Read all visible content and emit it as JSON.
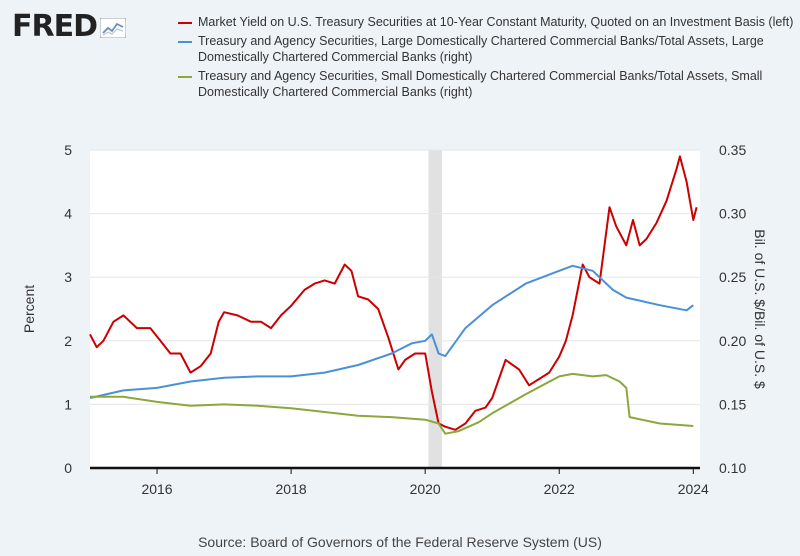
{
  "logo": {
    "text": "FRED",
    "badge_icon": "line-chart-icon"
  },
  "source": "Source: Board of Governors of the Federal Reserve System (US)",
  "colors": {
    "background": "#eef3f8",
    "plot_bg": "#ffffff",
    "recession": "#e1e1e1",
    "red": "#cc0000",
    "blue": "#4a90d9",
    "green": "#8aa83c"
  },
  "chart_data": {
    "type": "line",
    "x_range": [
      2015.0,
      2024.1
    ],
    "x_ticks": [
      2016,
      2018,
      2020,
      2022,
      2024
    ],
    "x_tick_labels": [
      "2016",
      "2018",
      "2020",
      "2022",
      "2024"
    ],
    "ylabel_left": "Percent",
    "ylabel_right": "Bil. of U.S. $/Bil. of U.S. $",
    "ylim_left": [
      0,
      5
    ],
    "ylim_right": [
      0.1,
      0.35
    ],
    "left_ticks": [
      0,
      1,
      2,
      3,
      4,
      5
    ],
    "left_tick_labels": [
      "0",
      "1",
      "2",
      "3",
      "4",
      "5"
    ],
    "right_ticks": [
      0.1,
      0.15,
      0.2,
      0.25,
      0.3,
      0.35
    ],
    "right_tick_labels": [
      "0.10",
      "0.15",
      "0.20",
      "0.25",
      "0.30",
      "0.35"
    ],
    "recession": [
      2020.05,
      2020.25
    ],
    "series": [
      {
        "name": "Market Yield on U.S. Treasury Securities at 10-Year Constant Maturity, Quoted on an Investment Basis (left)",
        "axis": "left",
        "color": "#cc0000",
        "x": [
          2015.0,
          2015.1,
          2015.2,
          2015.35,
          2015.5,
          2015.7,
          2015.9,
          2016.05,
          2016.2,
          2016.35,
          2016.5,
          2016.65,
          2016.8,
          2016.92,
          2017.0,
          2017.2,
          2017.4,
          2017.55,
          2017.7,
          2017.85,
          2018.0,
          2018.2,
          2018.35,
          2018.5,
          2018.65,
          2018.8,
          2018.9,
          2019.0,
          2019.15,
          2019.3,
          2019.45,
          2019.6,
          2019.7,
          2019.85,
          2020.0,
          2020.1,
          2020.2,
          2020.3,
          2020.45,
          2020.6,
          2020.75,
          2020.9,
          2021.0,
          2021.1,
          2021.2,
          2021.4,
          2021.55,
          2021.7,
          2021.85,
          2022.0,
          2022.1,
          2022.2,
          2022.35,
          2022.45,
          2022.6,
          2022.75,
          2022.85,
          2023.0,
          2023.1,
          2023.2,
          2023.3,
          2023.45,
          2023.6,
          2023.75,
          2023.8,
          2023.9,
          2024.0,
          2024.05
        ],
        "y": [
          2.1,
          1.9,
          2.0,
          2.3,
          2.4,
          2.2,
          2.2,
          2.0,
          1.8,
          1.8,
          1.5,
          1.6,
          1.8,
          2.3,
          2.45,
          2.4,
          2.3,
          2.3,
          2.2,
          2.4,
          2.55,
          2.8,
          2.9,
          2.95,
          2.9,
          3.2,
          3.1,
          2.7,
          2.65,
          2.5,
          2.05,
          1.55,
          1.7,
          1.8,
          1.8,
          1.2,
          0.7,
          0.65,
          0.6,
          0.7,
          0.9,
          0.95,
          1.1,
          1.4,
          1.7,
          1.55,
          1.3,
          1.4,
          1.5,
          1.75,
          2.0,
          2.4,
          3.2,
          3.0,
          2.9,
          4.1,
          3.8,
          3.5,
          3.9,
          3.5,
          3.6,
          3.85,
          4.2,
          4.7,
          4.9,
          4.5,
          3.9,
          4.1
        ]
      },
      {
        "name": "Treasury and Agency Securities, Large Domestically Chartered Commercial Banks/Total Assets, Large Domestically Chartered Commercial Banks (right)",
        "axis": "right",
        "color": "#4a90d9",
        "x": [
          2015.0,
          2015.5,
          2016.0,
          2016.5,
          2017.0,
          2017.5,
          2018.0,
          2018.5,
          2019.0,
          2019.5,
          2019.8,
          2020.0,
          2020.1,
          2020.2,
          2020.3,
          2020.6,
          2021.0,
          2021.5,
          2022.0,
          2022.2,
          2022.5,
          2022.8,
          2023.0,
          2023.5,
          2023.9,
          2024.0
        ],
        "y": [
          0.155,
          0.161,
          0.163,
          0.168,
          0.171,
          0.172,
          0.172,
          0.175,
          0.181,
          0.19,
          0.198,
          0.2,
          0.205,
          0.19,
          0.188,
          0.21,
          0.228,
          0.245,
          0.255,
          0.259,
          0.255,
          0.24,
          0.234,
          0.228,
          0.224,
          0.228
        ]
      },
      {
        "name": "Treasury and Agency Securities, Small Domestically Chartered Commercial Banks/Total Assets, Small Domestically Chartered Commercial Banks (right)",
        "axis": "right",
        "color": "#8aa83c",
        "x": [
          2015.0,
          2015.5,
          2016.0,
          2016.5,
          2017.0,
          2017.5,
          2018.0,
          2018.5,
          2019.0,
          2019.5,
          2020.0,
          2020.2,
          2020.3,
          2020.5,
          2020.8,
          2021.0,
          2021.5,
          2022.0,
          2022.2,
          2022.5,
          2022.7,
          2022.9,
          2023.0,
          2023.05,
          2023.5,
          2024.0
        ],
        "y": [
          0.156,
          0.156,
          0.152,
          0.149,
          0.15,
          0.149,
          0.147,
          0.144,
          0.141,
          0.14,
          0.138,
          0.135,
          0.127,
          0.129,
          0.136,
          0.143,
          0.158,
          0.172,
          0.174,
          0.172,
          0.173,
          0.168,
          0.163,
          0.14,
          0.135,
          0.133
        ]
      }
    ]
  }
}
